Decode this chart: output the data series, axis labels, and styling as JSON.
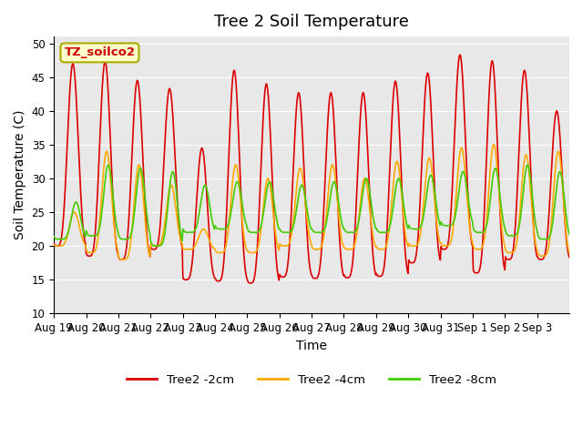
{
  "title": "Tree 2 Soil Temperature",
  "xlabel": "Time",
  "ylabel": "Soil Temperature (C)",
  "ylim": [
    10,
    51
  ],
  "yticks": [
    10,
    15,
    20,
    25,
    30,
    35,
    40,
    45,
    50
  ],
  "xtick_positions": [
    0,
    1,
    2,
    3,
    4,
    5,
    6,
    7,
    8,
    9,
    10,
    11,
    12,
    13,
    14,
    15
  ],
  "xtick_labels": [
    "Aug 19",
    "Aug 20",
    "Aug 21",
    "Aug 22",
    "Aug 23",
    "Aug 24",
    "Aug 25",
    "Aug 26",
    "Aug 27",
    "Aug 28",
    "Aug 29",
    "Aug 30",
    "Aug 31",
    "Sep 1",
    "Sep 2",
    "Sep 3"
  ],
  "color_2cm": "#dd0000",
  "color_4cm": "#ffaa00",
  "color_8cm": "#44cc00",
  "legend_labels": [
    "Tree2 -2cm",
    "Tree2 -4cm",
    "Tree2 -8cm"
  ],
  "annotation_text": "TZ_soilco2",
  "annotation_bbox_facecolor": "#ffffcc",
  "annotation_bbox_edgecolor": "#aaaa00",
  "background_color": "#e8e8e8",
  "title_fontsize": 13,
  "axis_label_fontsize": 10,
  "tick_fontsize": 8.5,
  "peaks_2cm": [
    47.0,
    47.3,
    44.5,
    43.3,
    34.5,
    46.0,
    44.0,
    42.7,
    42.7,
    42.7,
    44.4,
    45.6,
    48.3,
    47.4,
    46.0,
    40.0
  ],
  "troughs_2cm": [
    20.0,
    18.5,
    18.0,
    19.5,
    15.0,
    14.8,
    14.5,
    15.4,
    15.2,
    15.3,
    15.5,
    17.5,
    19.5,
    16.0,
    18.0,
    18.0
  ],
  "peaks_4cm": [
    25.0,
    34.0,
    32.0,
    29.0,
    22.5,
    32.0,
    30.0,
    31.5,
    32.0,
    30.0,
    32.5,
    33.0,
    34.5,
    35.0,
    33.5,
    34.0
  ],
  "troughs_4cm": [
    20.0,
    19.0,
    18.0,
    20.0,
    19.5,
    19.0,
    19.0,
    20.0,
    19.5,
    19.5,
    19.5,
    20.0,
    20.0,
    19.5,
    19.0,
    18.5
  ],
  "peaks_8cm": [
    26.5,
    32.0,
    31.5,
    31.0,
    29.0,
    29.5,
    29.5,
    29.0,
    29.5,
    30.0,
    30.0,
    30.5,
    31.0,
    31.5,
    32.0,
    31.0
  ],
  "troughs_8cm": [
    21.0,
    21.5,
    21.0,
    20.0,
    22.0,
    22.5,
    22.0,
    22.0,
    22.0,
    22.0,
    22.0,
    22.5,
    23.0,
    22.0,
    21.5,
    21.0
  ]
}
